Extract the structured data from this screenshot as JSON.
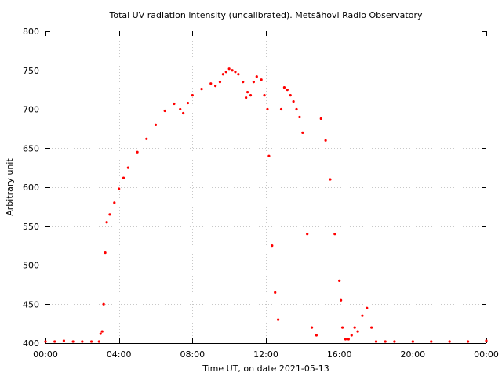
{
  "chart_data": {
    "type": "scatter",
    "title": "Total UV radiation intensity (uncalibrated). Metsähovi Radio Observatory",
    "xlabel": "Time UT, on date 2021-05-13",
    "ylabel": "Arbitrary unit",
    "xlim": [
      "00:00",
      "24:00"
    ],
    "ylim": [
      400,
      800
    ],
    "x_ticks": [
      "00:00",
      "04:00",
      "08:00",
      "12:00",
      "16:00",
      "20:00",
      "00:00"
    ],
    "y_ticks": [
      400,
      450,
      500,
      550,
      600,
      650,
      700,
      750,
      800
    ],
    "grid": true,
    "marker_color": "#ff0000",
    "series": [
      {
        "x": [
          "00:00",
          "00:30",
          "01:00",
          "01:30",
          "02:00",
          "02:30",
          "02:55",
          "03:00",
          "03:05",
          "03:10",
          "03:15",
          "03:20",
          "03:30",
          "03:45",
          "04:00",
          "04:15",
          "04:30",
          "05:00",
          "05:30",
          "06:00",
          "06:30",
          "07:00",
          "07:20",
          "07:30",
          "07:45",
          "08:00",
          "08:30",
          "09:00",
          "09:15",
          "09:30",
          "09:40",
          "09:50",
          "10:00",
          "10:10",
          "10:20",
          "10:30",
          "10:45",
          "10:55",
          "11:00",
          "11:10",
          "11:20",
          "11:30",
          "11:45",
          "11:55",
          "12:05",
          "12:10",
          "12:20",
          "12:30",
          "12:40",
          "12:50",
          "13:00",
          "13:10",
          "13:20",
          "13:30",
          "13:40",
          "13:50",
          "14:00",
          "14:15",
          "14:30",
          "14:45",
          "15:00",
          "15:15",
          "15:30",
          "15:45",
          "16:00",
          "16:05",
          "16:10",
          "16:20",
          "16:30",
          "16:40",
          "16:50",
          "17:00",
          "17:15",
          "17:30",
          "17:45",
          "18:00",
          "18:30",
          "19:00",
          "20:00",
          "21:00",
          "22:00",
          "23:00",
          "24:00"
        ],
        "y": [
          402,
          402,
          403,
          402,
          402,
          402,
          402,
          412,
          415,
          450,
          516,
          555,
          565,
          580,
          598,
          612,
          625,
          645,
          662,
          680,
          698,
          707,
          700,
          695,
          708,
          718,
          726,
          733,
          730,
          735,
          745,
          748,
          752,
          750,
          748,
          745,
          735,
          715,
          722,
          718,
          735,
          742,
          738,
          718,
          700,
          640,
          525,
          465,
          430,
          700,
          728,
          725,
          718,
          710,
          700,
          690,
          670,
          540,
          420,
          410,
          688,
          660,
          610,
          540,
          480,
          455,
          420,
          405,
          405,
          410,
          420,
          415,
          435,
          445,
          420,
          402,
          402,
          402,
          402,
          402,
          402,
          402,
          403
        ]
      }
    ]
  }
}
